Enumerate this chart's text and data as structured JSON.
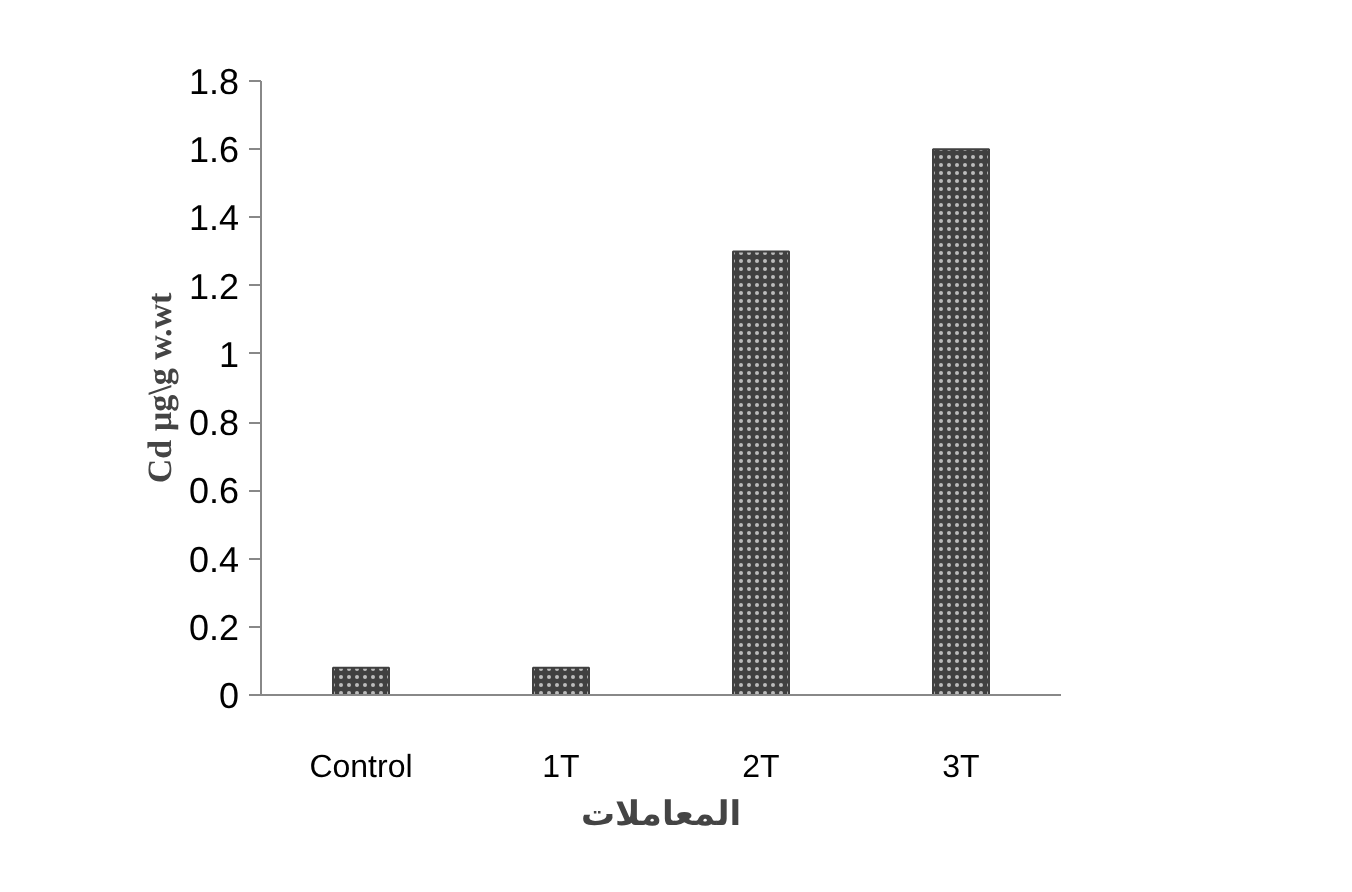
{
  "chart_data": {
    "type": "bar",
    "xlabel": "المعاملات",
    "ylabel": "Cd µg\\g w.wt",
    "categories": [
      "Control",
      "1T",
      "2T",
      "3T"
    ],
    "values": [
      0.08,
      0.08,
      1.3,
      1.6
    ],
    "color": "#404040",
    "ylim": [
      0,
      1.8
    ],
    "yticks": [
      0,
      0.2,
      0.4,
      0.6,
      0.8,
      1,
      1.2,
      1.4,
      1.6,
      1.8
    ],
    "grid": false
  }
}
